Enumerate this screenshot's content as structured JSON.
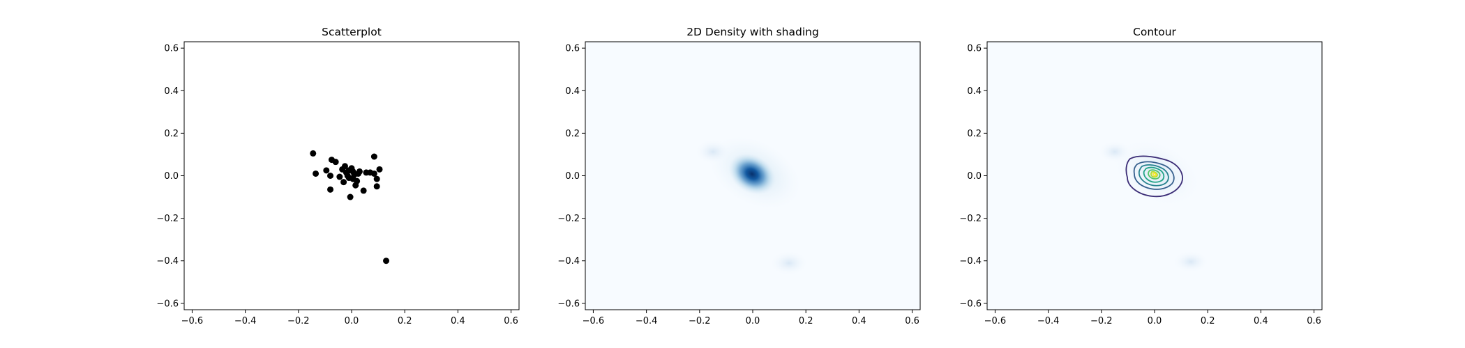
{
  "chart_data": [
    {
      "type": "scatter",
      "title": "Scatterplot",
      "xlabel": "",
      "ylabel": "",
      "xlim": [
        -0.63,
        0.63
      ],
      "ylim": [
        -0.63,
        0.63
      ],
      "xticks": [
        "−0.6",
        "−0.4",
        "−0.2",
        "0.0",
        "0.2",
        "0.4",
        "0.6"
      ],
      "yticks": [
        "−0.6",
        "−0.4",
        "−0.2",
        "0.0",
        "0.2",
        "0.4",
        "0.6"
      ],
      "grid": false,
      "marker_color": "#000000",
      "points": [
        [
          -0.145,
          0.105
        ],
        [
          -0.135,
          0.01
        ],
        [
          -0.095,
          0.025
        ],
        [
          -0.08,
          0.0
        ],
        [
          -0.075,
          0.075
        ],
        [
          -0.06,
          0.065
        ],
        [
          -0.08,
          -0.065
        ],
        [
          -0.045,
          -0.005
        ],
        [
          -0.035,
          0.03
        ],
        [
          -0.03,
          -0.03
        ],
        [
          -0.025,
          0.045
        ],
        [
          -0.02,
          0.015
        ],
        [
          -0.015,
          0.0
        ],
        [
          -0.01,
          -0.01
        ],
        [
          -0.005,
          -0.1
        ],
        [
          0.0,
          0.035
        ],
        [
          0.005,
          0.02
        ],
        [
          0.01,
          0.005
        ],
        [
          0.015,
          -0.045
        ],
        [
          0.02,
          -0.025
        ],
        [
          0.025,
          0.01
        ],
        [
          0.03,
          0.02
        ],
        [
          -0.01,
          0.025
        ],
        [
          0.005,
          -0.015
        ],
        [
          0.045,
          -0.07
        ],
        [
          0.055,
          0.015
        ],
        [
          0.07,
          0.015
        ],
        [
          0.085,
          0.01
        ],
        [
          0.085,
          0.09
        ],
        [
          0.095,
          -0.015
        ],
        [
          0.095,
          -0.05
        ],
        [
          0.105,
          0.03
        ],
        [
          0.13,
          -0.4
        ]
      ]
    },
    {
      "type": "heatmap",
      "title": "2D Density with shading",
      "xlabel": "",
      "ylabel": "",
      "xlim": [
        -0.63,
        0.63
      ],
      "ylim": [
        -0.63,
        0.63
      ],
      "xticks": [
        "−0.6",
        "−0.4",
        "−0.2",
        "0.0",
        "0.2",
        "0.4",
        "0.6"
      ],
      "yticks": [
        "−0.6",
        "−0.4",
        "−0.2",
        "0.0",
        "0.2",
        "0.4",
        "0.6"
      ],
      "grid": false,
      "colormap": "Blues",
      "density_peak": [
        0.0,
        0.0
      ]
    },
    {
      "type": "heatmap",
      "title": "Contour",
      "xlabel": "",
      "ylabel": "",
      "xlim": [
        -0.63,
        0.63
      ],
      "ylim": [
        -0.63,
        0.63
      ],
      "xticks": [
        "−0.6",
        "−0.4",
        "−0.2",
        "0.0",
        "0.2",
        "0.4",
        "0.6"
      ],
      "yticks": [
        "−0.6",
        "−0.4",
        "−0.2",
        "0.0",
        "0.2",
        "0.4",
        "0.6"
      ],
      "grid": false,
      "colormap": "viridis contour lines over Blues shading",
      "contour_colors": [
        "#3b2c76",
        "#355f8d",
        "#26828e",
        "#20a386",
        "#55c568",
        "#b5de2b",
        "#fde725"
      ],
      "density_peak": [
        0.0,
        0.0
      ]
    }
  ]
}
